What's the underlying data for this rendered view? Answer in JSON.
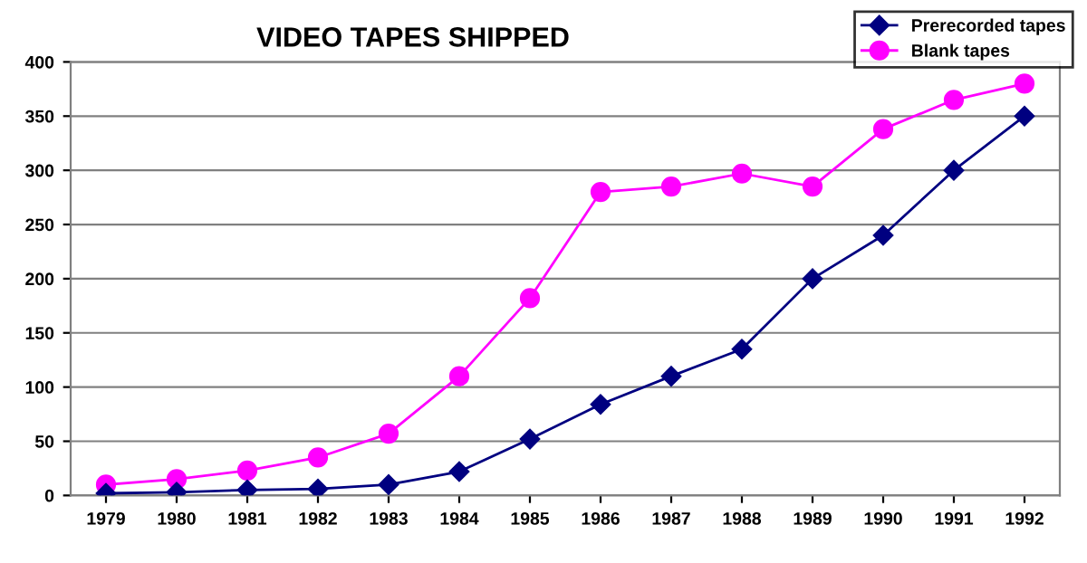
{
  "chart_data": {
    "type": "line",
    "title": "VIDEO TAPES SHIPPED",
    "categories": [
      "1979",
      "1980",
      "1981",
      "1982",
      "1983",
      "1984",
      "1985",
      "1986",
      "1987",
      "1988",
      "1989",
      "1990",
      "1991",
      "1992"
    ],
    "series": [
      {
        "name": "Prerecorded tapes",
        "color": "#000080",
        "marker": "diamond",
        "values": [
          2,
          3,
          5,
          6,
          10,
          22,
          52,
          84,
          110,
          135,
          200,
          240,
          300,
          350
        ]
      },
      {
        "name": "Blank tapes",
        "color": "#ff00ff",
        "marker": "circle",
        "values": [
          10,
          15,
          23,
          35,
          57,
          110,
          182,
          280,
          285,
          297,
          285,
          338,
          365,
          380
        ]
      }
    ],
    "ylim": [
      0,
      400
    ],
    "yticks": [
      0,
      50,
      100,
      150,
      200,
      250,
      300,
      350,
      400
    ],
    "grid": "y",
    "legend": "top right",
    "line_style": "solid"
  }
}
